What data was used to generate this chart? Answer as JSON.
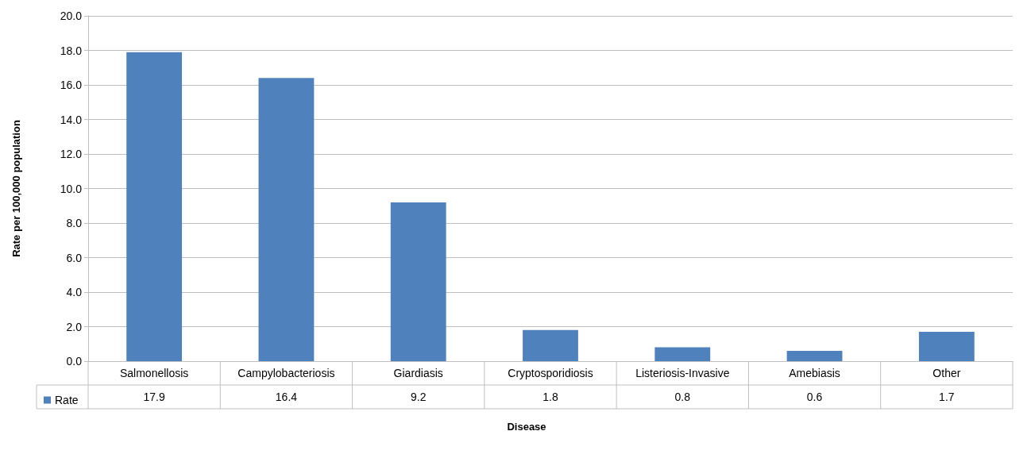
{
  "chart_data": {
    "type": "bar",
    "xlabel": "Disease",
    "ylabel": "Rate per 100,000 population",
    "categories": [
      "Salmonellosis",
      "Campylobacteriosis",
      "Giardiasis",
      "Cryptosporidiosis",
      "Listeriosis-Invasive",
      "Amebiasis",
      "Other"
    ],
    "series": [
      {
        "name": "Rate",
        "color": "#4f81bd",
        "values": [
          17.9,
          16.4,
          9.2,
          1.8,
          0.8,
          0.6,
          1.7
        ]
      }
    ],
    "ylim": [
      0,
      20
    ],
    "yticks": [
      {
        "value": 0,
        "label": "0.0"
      },
      {
        "value": 2,
        "label": "2.0"
      },
      {
        "value": 4,
        "label": "4.0"
      },
      {
        "value": 6,
        "label": "6.0"
      },
      {
        "value": 8,
        "label": "8.0"
      },
      {
        "value": 10,
        "label": "10.0"
      },
      {
        "value": 12,
        "label": "12.0"
      },
      {
        "value": 14,
        "label": "14.0"
      },
      {
        "value": 16,
        "label": "16.0"
      },
      {
        "value": 18,
        "label": "18.0"
      },
      {
        "value": 20,
        "label": "20.0"
      }
    ],
    "grid": "y",
    "data_labels": true,
    "legend": "bottom left"
  }
}
